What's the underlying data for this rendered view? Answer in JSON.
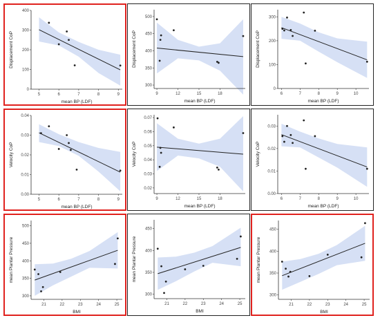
{
  "colors": {
    "highlight": "#e0211d",
    "band": "#d6e0f5",
    "line": "#222222",
    "point": "#222222"
  },
  "chart_data": [
    {
      "type": "scatter",
      "highlight": true,
      "xlabel": "mean BP (LDF)",
      "ylabel": "Displacement CoP",
      "xlim": [
        4.6,
        9.2
      ],
      "ylim": [
        0,
        400
      ],
      "xticks": [
        {
          "v": 5,
          "t": "5"
        },
        {
          "v": 6,
          "t": "6"
        },
        {
          "v": 7,
          "t": "7"
        },
        {
          "v": 8,
          "t": "8"
        },
        {
          "v": 9,
          "t": "9"
        }
      ],
      "yticks": [
        {
          "v": 0,
          "t": "0"
        },
        {
          "v": 100,
          "t": "100"
        },
        {
          "v": 200,
          "t": "200"
        },
        {
          "v": 300,
          "t": "300"
        },
        {
          "v": 400,
          "t": "400"
        }
      ],
      "points": [
        [
          5.5,
          337
        ],
        [
          6.0,
          228
        ],
        [
          6.4,
          293
        ],
        [
          6.5,
          250
        ],
        [
          6.8,
          121
        ],
        [
          9.1,
          120
        ]
      ],
      "line": [
        [
          5.0,
          302
        ],
        [
          9.1,
          98
        ]
      ],
      "band_upper": [
        [
          5.0,
          365
        ],
        [
          6.0,
          288
        ],
        [
          7.0,
          240
        ],
        [
          8.0,
          200
        ],
        [
          9.1,
          175
        ]
      ],
      "band_lower": [
        [
          5.0,
          242
        ],
        [
          6.0,
          222
        ],
        [
          7.0,
          165
        ],
        [
          8.0,
          82
        ],
        [
          9.1,
          18
        ]
      ]
    },
    {
      "type": "scatter",
      "highlight": false,
      "xlabel": "mean BP (LDF)",
      "ylabel": "Displacement CoP",
      "xlim": [
        8.6,
        21.6
      ],
      "ylim": [
        290,
        520
      ],
      "xticks": [
        {
          "v": 9,
          "t": "9"
        },
        {
          "v": 12,
          "t": "12"
        },
        {
          "v": 15,
          "t": "15"
        },
        {
          "v": 18,
          "t": "18"
        }
      ],
      "yticks": [
        {
          "v": 300,
          "t": "300"
        },
        {
          "v": 350,
          "t": "350"
        },
        {
          "v": 400,
          "t": "400"
        },
        {
          "v": 450,
          "t": "450"
        },
        {
          "v": 500,
          "t": "500"
        }
      ],
      "points": [
        [
          9.0,
          492
        ],
        [
          9.5,
          432
        ],
        [
          9.6,
          445
        ],
        [
          9.4,
          371
        ],
        [
          11.4,
          460
        ],
        [
          17.6,
          368
        ],
        [
          17.8,
          365
        ],
        [
          21.3,
          443
        ]
      ],
      "line": [
        [
          9.0,
          408
        ],
        [
          21.3,
          383
        ]
      ],
      "band_upper": [
        [
          9.0,
          482
        ],
        [
          12.0,
          432
        ],
        [
          15.0,
          412
        ],
        [
          18.0,
          422
        ],
        [
          21.3,
          492
        ]
      ],
      "band_lower": [
        [
          9.0,
          334
        ],
        [
          12.0,
          378
        ],
        [
          15.0,
          372
        ],
        [
          18.0,
          342
        ],
        [
          21.3,
          272
        ]
      ]
    },
    {
      "type": "scatter",
      "highlight": false,
      "xlabel": "mean BP (LDF)",
      "ylabel": "Displacement CoP",
      "xlim": [
        5.8,
        10.7
      ],
      "ylim": [
        0,
        330
      ],
      "xticks": [
        {
          "v": 6,
          "t": "6"
        },
        {
          "v": 7,
          "t": "7"
        },
        {
          "v": 8,
          "t": "8"
        },
        {
          "v": 9,
          "t": "9"
        },
        {
          "v": 10,
          "t": "10"
        }
      ],
      "yticks": [
        {
          "v": 0,
          "t": "0"
        },
        {
          "v": 100,
          "t": "100"
        },
        {
          "v": 200,
          "t": "200"
        },
        {
          "v": 300,
          "t": "300"
        }
      ],
      "points": [
        [
          6.05,
          250
        ],
        [
          6.15,
          243
        ],
        [
          6.3,
          297
        ],
        [
          6.5,
          245
        ],
        [
          6.6,
          220
        ],
        [
          7.2,
          318
        ],
        [
          7.3,
          105
        ],
        [
          7.8,
          242
        ],
        [
          10.6,
          112
        ]
      ],
      "line": [
        [
          6.0,
          255
        ],
        [
          10.6,
          120
        ]
      ],
      "band_upper": [
        [
          6.0,
          300
        ],
        [
          7.0,
          272
        ],
        [
          8.0,
          235
        ],
        [
          9.0,
          210
        ],
        [
          10.6,
          196
        ]
      ],
      "band_lower": [
        [
          6.0,
          208
        ],
        [
          7.0,
          200
        ],
        [
          8.0,
          154
        ],
        [
          9.0,
          110
        ],
        [
          10.6,
          44
        ]
      ]
    },
    {
      "type": "scatter",
      "highlight": true,
      "xlabel": "mean BP (LDF)",
      "ylabel": "Velocity CoP",
      "xlim": [
        4.6,
        9.2
      ],
      "ylim": [
        0.0,
        0.04
      ],
      "xticks": [
        {
          "v": 5,
          "t": "5"
        },
        {
          "v": 6,
          "t": "6"
        },
        {
          "v": 7,
          "t": "7"
        },
        {
          "v": 8,
          "t": "8"
        },
        {
          "v": 9,
          "t": "9"
        }
      ],
      "yticks": [
        {
          "v": 0.0,
          "t": "0.00"
        },
        {
          "v": 0.01,
          "t": "0.01"
        },
        {
          "v": 0.02,
          "t": "0.02"
        },
        {
          "v": 0.03,
          "t": "0.03"
        },
        {
          "v": 0.04,
          "t": "0.04"
        }
      ],
      "points": [
        [
          5.1,
          0.031
        ],
        [
          5.5,
          0.0345
        ],
        [
          6.0,
          0.023
        ],
        [
          6.4,
          0.03
        ],
        [
          6.5,
          0.026
        ],
        [
          6.6,
          0.0225
        ],
        [
          6.9,
          0.0125
        ],
        [
          9.1,
          0.012
        ]
      ],
      "line": [
        [
          5.0,
          0.0312
        ],
        [
          9.1,
          0.0112
        ]
      ],
      "band_upper": [
        [
          5.0,
          0.0355
        ],
        [
          6.0,
          0.0305
        ],
        [
          7.0,
          0.0265
        ],
        [
          8.0,
          0.0235
        ],
        [
          9.1,
          0.0215
        ]
      ],
      "band_lower": [
        [
          5.0,
          0.0265
        ],
        [
          6.0,
          0.0245
        ],
        [
          7.0,
          0.0195
        ],
        [
          8.0,
          0.0115
        ],
        [
          9.1,
          0.0015
        ]
      ]
    },
    {
      "type": "scatter",
      "highlight": false,
      "xlabel": "mean BP (LDF)",
      "ylabel": "Velocity CoP",
      "xlim": [
        8.6,
        21.6
      ],
      "ylim": [
        0.016,
        0.072
      ],
      "xticks": [
        {
          "v": 9,
          "t": "9"
        },
        {
          "v": 12,
          "t": "12"
        },
        {
          "v": 15,
          "t": "15"
        },
        {
          "v": 18,
          "t": "18"
        }
      ],
      "yticks": [
        {
          "v": 0.02,
          "t": "0.02"
        },
        {
          "v": 0.03,
          "t": "0.03"
        },
        {
          "v": 0.04,
          "t": "0.04"
        },
        {
          "v": 0.05,
          "t": "0.05"
        },
        {
          "v": 0.06,
          "t": "0.06"
        },
        {
          "v": 0.07,
          "t": "0.07"
        }
      ],
      "points": [
        [
          9.1,
          0.0695
        ],
        [
          9.5,
          0.0485
        ],
        [
          9.6,
          0.045
        ],
        [
          9.4,
          0.035
        ],
        [
          11.4,
          0.063
        ],
        [
          17.6,
          0.0345
        ],
        [
          17.8,
          0.033
        ],
        [
          21.3,
          0.059
        ]
      ],
      "line": [
        [
          9.0,
          0.049
        ],
        [
          21.3,
          0.044
        ]
      ],
      "band_upper": [
        [
          9.0,
          0.066
        ],
        [
          12.0,
          0.055
        ],
        [
          15.0,
          0.0515
        ],
        [
          18.0,
          0.055
        ],
        [
          21.3,
          0.071
        ]
      ],
      "band_lower": [
        [
          9.0,
          0.032
        ],
        [
          12.0,
          0.043
        ],
        [
          15.0,
          0.041
        ],
        [
          18.0,
          0.035
        ],
        [
          21.3,
          0.0175
        ]
      ]
    },
    {
      "type": "scatter",
      "highlight": false,
      "xlabel": "mean BP (LDF)",
      "ylabel": "Velocity CoP",
      "xlim": [
        5.8,
        10.7
      ],
      "ylim": [
        0.0,
        0.035
      ],
      "xticks": [
        {
          "v": 6,
          "t": "6"
        },
        {
          "v": 7,
          "t": "7"
        },
        {
          "v": 8,
          "t": "8"
        },
        {
          "v": 9,
          "t": "9"
        },
        {
          "v": 10,
          "t": "10"
        }
      ],
      "yticks": [
        {
          "v": 0.0,
          "t": "0.00"
        },
        {
          "v": 0.01,
          "t": "0.01"
        },
        {
          "v": 0.02,
          "t": "0.02"
        },
        {
          "v": 0.03,
          "t": "0.03"
        }
      ],
      "points": [
        [
          6.05,
          0.0255
        ],
        [
          6.15,
          0.023
        ],
        [
          6.3,
          0.03
        ],
        [
          6.5,
          0.026
        ],
        [
          6.6,
          0.0225
        ],
        [
          7.2,
          0.0325
        ],
        [
          7.3,
          0.011
        ],
        [
          7.8,
          0.0255
        ],
        [
          10.6,
          0.011
        ]
      ],
      "line": [
        [
          6.0,
          0.0262
        ],
        [
          10.6,
          0.0118
        ]
      ],
      "band_upper": [
        [
          6.0,
          0.031
        ],
        [
          7.0,
          0.0275
        ],
        [
          8.0,
          0.0245
        ],
        [
          9.0,
          0.022
        ],
        [
          10.6,
          0.0205
        ]
      ],
      "band_lower": [
        [
          6.0,
          0.021
        ],
        [
          7.0,
          0.0205
        ],
        [
          8.0,
          0.016
        ],
        [
          9.0,
          0.0115
        ],
        [
          10.6,
          0.003
        ]
      ]
    },
    {
      "type": "scatter",
      "highlight": true,
      "xlabel": "BMI",
      "ylabel": "mean Plantar Pressure",
      "xlim": [
        20.3,
        25.3
      ],
      "ylim": [
        290,
        515
      ],
      "xticks": [
        {
          "v": 21,
          "t": "21"
        },
        {
          "v": 22,
          "t": "22"
        },
        {
          "v": 23,
          "t": "23"
        },
        {
          "v": 24,
          "t": "24"
        },
        {
          "v": 25,
          "t": "25"
        }
      ],
      "yticks": [
        {
          "v": 300,
          "t": "300"
        },
        {
          "v": 350,
          "t": "350"
        },
        {
          "v": 400,
          "t": "400"
        },
        {
          "v": 450,
          "t": "450"
        },
        {
          "v": 500,
          "t": "500"
        }
      ],
      "points": [
        [
          20.5,
          375
        ],
        [
          20.7,
          362
        ],
        [
          20.85,
          313
        ],
        [
          20.95,
          325
        ],
        [
          21.9,
          368
        ],
        [
          24.9,
          391
        ],
        [
          25.05,
          464
        ]
      ],
      "line": [
        [
          20.5,
          345
        ],
        [
          25.05,
          430
        ]
      ],
      "band_upper": [
        [
          20.5,
          390
        ],
        [
          21.5,
          392
        ],
        [
          22.5,
          406
        ],
        [
          23.5,
          428
        ],
        [
          25.05,
          482
        ]
      ],
      "band_lower": [
        [
          20.5,
          300
        ],
        [
          21.5,
          330
        ],
        [
          22.5,
          355
        ],
        [
          23.5,
          380
        ],
        [
          25.05,
          378
        ]
      ]
    },
    {
      "type": "scatter",
      "highlight": false,
      "xlabel": "BMI",
      "ylabel": "mean Plantar Pressure",
      "xlim": [
        20.3,
        25.3
      ],
      "ylim": [
        290,
        470
      ],
      "xticks": [
        {
          "v": 21,
          "t": "21"
        },
        {
          "v": 22,
          "t": "22"
        },
        {
          "v": 23,
          "t": "23"
        },
        {
          "v": 24,
          "t": "24"
        },
        {
          "v": 25,
          "t": "25"
        }
      ],
      "yticks": [
        {
          "v": 300,
          "t": "300"
        },
        {
          "v": 350,
          "t": "350"
        },
        {
          "v": 400,
          "t": "400"
        },
        {
          "v": 450,
          "t": "450"
        }
      ],
      "points": [
        [
          20.5,
          404
        ],
        [
          20.7,
          364
        ],
        [
          20.85,
          303
        ],
        [
          20.95,
          329
        ],
        [
          22.0,
          357
        ],
        [
          23.0,
          365
        ],
        [
          24.85,
          381
        ],
        [
          25.05,
          432
        ]
      ],
      "line": [
        [
          20.5,
          347
        ],
        [
          25.05,
          407
        ]
      ],
      "band_upper": [
        [
          20.5,
          384
        ],
        [
          21.5,
          386
        ],
        [
          22.5,
          395
        ],
        [
          23.5,
          410
        ],
        [
          25.05,
          452
        ]
      ],
      "band_lower": [
        [
          20.5,
          310
        ],
        [
          21.5,
          330
        ],
        [
          22.5,
          352
        ],
        [
          23.5,
          372
        ],
        [
          25.05,
          364
        ]
      ]
    },
    {
      "type": "scatter",
      "highlight": true,
      "xlabel": "BMI",
      "ylabel": "mean Plantar Pressure",
      "xlim": [
        20.3,
        25.3
      ],
      "ylim": [
        290,
        470
      ],
      "xticks": [
        {
          "v": 21,
          "t": "21"
        },
        {
          "v": 22,
          "t": "22"
        },
        {
          "v": 23,
          "t": "23"
        },
        {
          "v": 24,
          "t": "24"
        },
        {
          "v": 25,
          "t": "25"
        }
      ],
      "yticks": [
        {
          "v": 300,
          "t": "300"
        },
        {
          "v": 350,
          "t": "350"
        },
        {
          "v": 400,
          "t": "400"
        },
        {
          "v": 450,
          "t": "450"
        }
      ],
      "points": [
        [
          20.5,
          376
        ],
        [
          20.7,
          360
        ],
        [
          20.85,
          342
        ],
        [
          20.95,
          353
        ],
        [
          22.0,
          343
        ],
        [
          23.0,
          392
        ],
        [
          24.85,
          386
        ],
        [
          25.05,
          464
        ]
      ],
      "line": [
        [
          20.5,
          344
        ],
        [
          25.05,
          418
        ]
      ],
      "band_upper": [
        [
          20.5,
          376
        ],
        [
          21.5,
          382
        ],
        [
          22.5,
          394
        ],
        [
          23.5,
          414
        ],
        [
          25.05,
          458
        ]
      ],
      "band_lower": [
        [
          20.5,
          312
        ],
        [
          21.5,
          330
        ],
        [
          22.5,
          348
        ],
        [
          23.5,
          368
        ],
        [
          25.05,
          378
        ]
      ]
    }
  ]
}
